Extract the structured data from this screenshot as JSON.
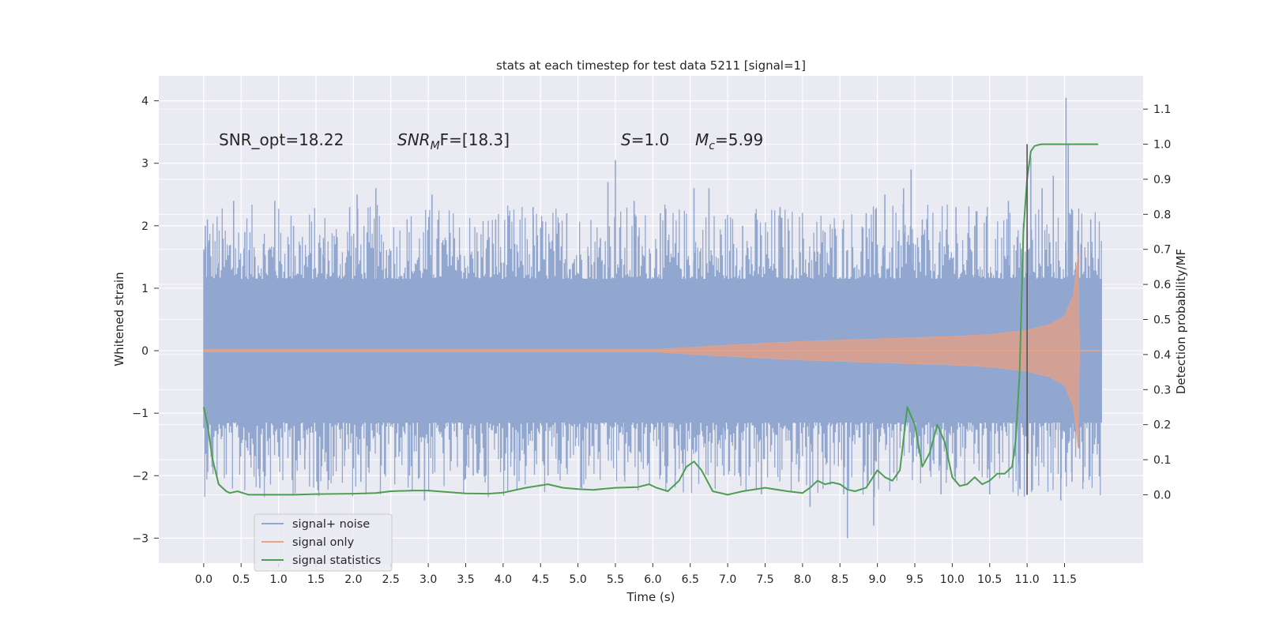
{
  "chart_data": {
    "type": "line",
    "title": "stats at each timestep for test data 5211 [signal=1]",
    "xlabel": "Time (s)",
    "ylabel_left": "Whitened strain",
    "ylabel_right": "Detection probability/MF",
    "x_range": [
      -0.6,
      12.55
    ],
    "y_left_range": [
      -3.4,
      4.4
    ],
    "y_right_range": [
      -0.195,
      1.195
    ],
    "x_ticks": [
      "0.0",
      "0.5",
      "1.0",
      "1.5",
      "2.0",
      "2.5",
      "3.0",
      "3.5",
      "4.0",
      "4.5",
      "5.0",
      "5.5",
      "6.0",
      "6.5",
      "7.0",
      "7.5",
      "8.0",
      "8.5",
      "9.0",
      "9.5",
      "10.0",
      "10.5",
      "11.0",
      "11.5"
    ],
    "y_left_ticks": [
      "4",
      "3",
      "2",
      "1",
      "0",
      "−1",
      "−2",
      "−3"
    ],
    "y_left_tick_values": [
      4,
      3,
      2,
      1,
      0,
      -1,
      -2,
      -3
    ],
    "y_right_ticks": [
      "1.1",
      "1.0",
      "0.9",
      "0.8",
      "0.7",
      "0.6",
      "0.5",
      "0.4",
      "0.3",
      "0.2",
      "0.1",
      "0.0"
    ],
    "y_right_tick_values": [
      1.1,
      1.0,
      0.9,
      0.8,
      0.7,
      0.6,
      0.5,
      0.4,
      0.3,
      0.2,
      0.1,
      0.0
    ],
    "annotations": {
      "snr_opt": "SNR_opt=18.22",
      "snr_mf_name": "SNR",
      "snr_mf_sub": "M",
      "snr_mf_tail": "F=[18.3]",
      "s_name": "S",
      "s_value": "=1.0",
      "mc_name": "M",
      "mc_sub": "c",
      "mc_value": "=5.99"
    },
    "series": [
      {
        "name": "signal+ noise",
        "axis": "left",
        "color": "#92a7cf",
        "x_start": 0.0,
        "x_end": 12.0,
        "baseline_band": [
          -1.15,
          1.15
        ],
        "spikes": [
          [
            0.02,
            2.0
          ],
          [
            0.05,
            2.1
          ],
          [
            0.1,
            -1.7
          ],
          [
            0.2,
            1.4
          ],
          [
            0.4,
            2.4
          ],
          [
            0.55,
            1.9
          ],
          [
            0.75,
            -2.2
          ],
          [
            0.95,
            2.4
          ],
          [
            1.2,
            2.0
          ],
          [
            1.35,
            -1.9
          ],
          [
            1.6,
            1.8
          ],
          [
            1.95,
            2.3
          ],
          [
            2.05,
            2.5
          ],
          [
            2.1,
            -2.1
          ],
          [
            2.3,
            2.6
          ],
          [
            2.5,
            1.6
          ],
          [
            2.75,
            -2.0
          ],
          [
            2.95,
            -2.4
          ],
          [
            3.05,
            2.5
          ],
          [
            3.35,
            1.8
          ],
          [
            3.6,
            -2.0
          ],
          [
            3.9,
            2.1
          ],
          [
            4.15,
            -2.0
          ],
          [
            4.4,
            2.3
          ],
          [
            4.6,
            -2.0
          ],
          [
            4.85,
            2.2
          ],
          [
            5.05,
            -2.2
          ],
          [
            5.3,
            1.8
          ],
          [
            5.4,
            2.7
          ],
          [
            5.5,
            3.05
          ],
          [
            5.62,
            -2.0
          ],
          [
            5.75,
            2.4
          ],
          [
            6.1,
            2.2
          ],
          [
            6.3,
            -2.0
          ],
          [
            6.55,
            2.6
          ],
          [
            6.75,
            2.6
          ],
          [
            6.95,
            -2.0
          ],
          [
            7.2,
            2.0
          ],
          [
            7.45,
            -2.3
          ],
          [
            7.7,
            2.3
          ],
          [
            7.95,
            -2.1
          ],
          [
            8.1,
            -2.5
          ],
          [
            8.3,
            1.9
          ],
          [
            8.55,
            -2.3
          ],
          [
            8.6,
            -3.0
          ],
          [
            8.85,
            2.2
          ],
          [
            8.95,
            -2.8
          ],
          [
            9.1,
            2.5
          ],
          [
            9.35,
            2.6
          ],
          [
            9.45,
            2.9
          ],
          [
            9.6,
            2.1
          ],
          [
            9.85,
            -2.3
          ],
          [
            10.05,
            2.3
          ],
          [
            10.3,
            2.0
          ],
          [
            10.5,
            -2.3
          ],
          [
            10.75,
            2.4
          ],
          [
            10.9,
            -2.2
          ],
          [
            11.05,
            3.1
          ],
          [
            11.2,
            2.6
          ],
          [
            11.35,
            2.8
          ],
          [
            11.45,
            -2.4
          ],
          [
            11.52,
            4.05
          ],
          [
            11.55,
            3.3
          ],
          [
            11.6,
            -2.1
          ],
          [
            11.75,
            -2.1
          ],
          [
            11.85,
            2.1
          ],
          [
            11.9,
            -1.5
          ],
          [
            11.97,
            0.6
          ]
        ]
      },
      {
        "name": "signal only",
        "axis": "left",
        "color": "#d9a08e",
        "x_start": 0.0,
        "x_end": 12.0,
        "envelope": [
          [
            0,
            0.02
          ],
          [
            6.0,
            0.02
          ],
          [
            7.0,
            0.09
          ],
          [
            8.0,
            0.15
          ],
          [
            9.0,
            0.19
          ],
          [
            10.0,
            0.23
          ],
          [
            10.5,
            0.26
          ],
          [
            11.0,
            0.33
          ],
          [
            11.3,
            0.42
          ],
          [
            11.5,
            0.55
          ],
          [
            11.62,
            0.9
          ],
          [
            11.68,
            1.55
          ],
          [
            11.7,
            0.0
          ],
          [
            12.0,
            0.0
          ]
        ]
      },
      {
        "name": "signal statistics",
        "axis": "right",
        "color": "#4c9e52",
        "x": [
          0.0,
          0.05,
          0.12,
          0.2,
          0.3,
          0.35,
          0.45,
          0.6,
          0.8,
          1.0,
          1.2,
          1.5,
          2.0,
          2.3,
          2.5,
          2.8,
          3.0,
          3.5,
          3.8,
          4.0,
          4.3,
          4.6,
          4.8,
          5.0,
          5.2,
          5.5,
          5.8,
          5.95,
          6.05,
          6.2,
          6.35,
          6.45,
          6.55,
          6.65,
          6.8,
          7.0,
          7.2,
          7.5,
          7.8,
          8.0,
          8.1,
          8.2,
          8.3,
          8.4,
          8.5,
          8.6,
          8.7,
          8.85,
          9.0,
          9.1,
          9.2,
          9.3,
          9.4,
          9.5,
          9.6,
          9.7,
          9.8,
          9.9,
          10.0,
          10.1,
          10.2,
          10.3,
          10.4,
          10.5,
          10.6,
          10.7,
          10.8,
          10.85,
          10.9,
          10.95,
          11.0,
          11.05,
          11.1,
          11.15,
          11.2,
          11.3,
          11.5,
          11.8,
          11.95
        ],
        "values": [
          0.25,
          0.2,
          0.1,
          0.03,
          0.01,
          0.005,
          0.01,
          0.0,
          0.0,
          0.0,
          0.0,
          0.002,
          0.003,
          0.005,
          0.01,
          0.012,
          0.012,
          0.004,
          0.003,
          0.006,
          0.02,
          0.03,
          0.02,
          0.016,
          0.014,
          0.02,
          0.022,
          0.03,
          0.02,
          0.01,
          0.04,
          0.08,
          0.095,
          0.07,
          0.01,
          0.0,
          0.01,
          0.02,
          0.01,
          0.005,
          0.02,
          0.04,
          0.03,
          0.035,
          0.03,
          0.015,
          0.01,
          0.02,
          0.07,
          0.05,
          0.04,
          0.07,
          0.25,
          0.2,
          0.08,
          0.12,
          0.2,
          0.15,
          0.05,
          0.025,
          0.03,
          0.05,
          0.03,
          0.04,
          0.06,
          0.06,
          0.08,
          0.16,
          0.35,
          0.75,
          0.9,
          0.98,
          0.995,
          0.998,
          1.0,
          1.0,
          1.0,
          1.0,
          1.0
        ]
      }
    ],
    "vertical_marker_x": 11.0,
    "vertical_marker_range_right": [
      0.0,
      1.0
    ],
    "legend_position": "lower-left"
  }
}
